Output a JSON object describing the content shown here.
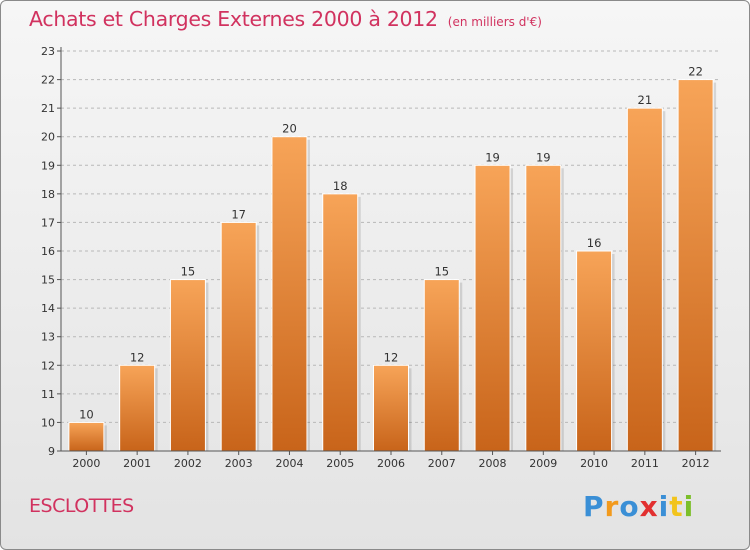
{
  "page": {
    "title": "Achats et Charges Externes 2000 à 2012",
    "unit": "(en milliers d'€)",
    "commune": "ESCLOTTES",
    "logo": {
      "letters": [
        {
          "char": "P",
          "color": "#3a8fd6"
        },
        {
          "char": "r",
          "color": "#f29a1d"
        },
        {
          "char": "o",
          "color": "#3a8fd6"
        },
        {
          "char": "x",
          "color": "#e23030"
        },
        {
          "char": "i",
          "color": "#3a8fd6"
        },
        {
          "char": "t",
          "color": "#f2c41d"
        },
        {
          "char": "i",
          "color": "#7cbf2a"
        }
      ]
    }
  },
  "chart_data": {
    "type": "bar",
    "title": "Achats et Charges Externes 2000 à 2012",
    "subtitle": "(en milliers d'€)",
    "categories": [
      "2000",
      "2001",
      "2002",
      "2003",
      "2004",
      "2005",
      "2006",
      "2007",
      "2008",
      "2009",
      "2010",
      "2011",
      "2012"
    ],
    "values": [
      10,
      12,
      15,
      17,
      20,
      18,
      12,
      15,
      19,
      19,
      16,
      21,
      22
    ],
    "ylim": [
      9,
      23
    ],
    "yticks": [
      9,
      10,
      11,
      12,
      13,
      14,
      15,
      16,
      17,
      18,
      19,
      20,
      21,
      22,
      23
    ],
    "xlabel": "",
    "ylabel": "",
    "grid": "horizontal-dashed",
    "bar_color_top": "#f7a458",
    "bar_color_bottom": "#c8641a"
  }
}
